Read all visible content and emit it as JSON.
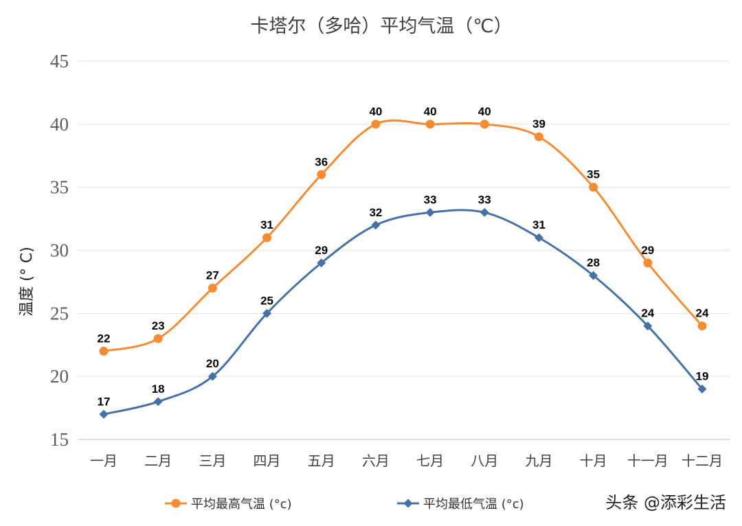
{
  "chart_data": {
    "type": "line",
    "title": "卡塔尔（多哈）平均气温（℃）",
    "ylabel": "温度 (° C)",
    "xlabel": "",
    "ylim": [
      15,
      45
    ],
    "yticks": [
      15,
      20,
      25,
      30,
      35,
      40,
      45
    ],
    "grid": true,
    "smooth": true,
    "legend_position": "bottom",
    "categories": [
      "一月",
      "二月",
      "三月",
      "四月",
      "五月",
      "六月",
      "七月",
      "八月",
      "九月",
      "十月",
      "十一月",
      "十二月"
    ],
    "series": [
      {
        "name": "平均最高气温 (°c)",
        "color": "#F58B32",
        "marker": "circle",
        "values": [
          22,
          23,
          27,
          31,
          36,
          40,
          40,
          40,
          39,
          35,
          29,
          24
        ]
      },
      {
        "name": "平均最低气温 (°c)",
        "color": "#4571A6",
        "marker": "diamond",
        "values": [
          17,
          18,
          20,
          25,
          29,
          32,
          33,
          33,
          31,
          28,
          24,
          19
        ]
      }
    ]
  },
  "watermark": "头条 @添彩生活"
}
